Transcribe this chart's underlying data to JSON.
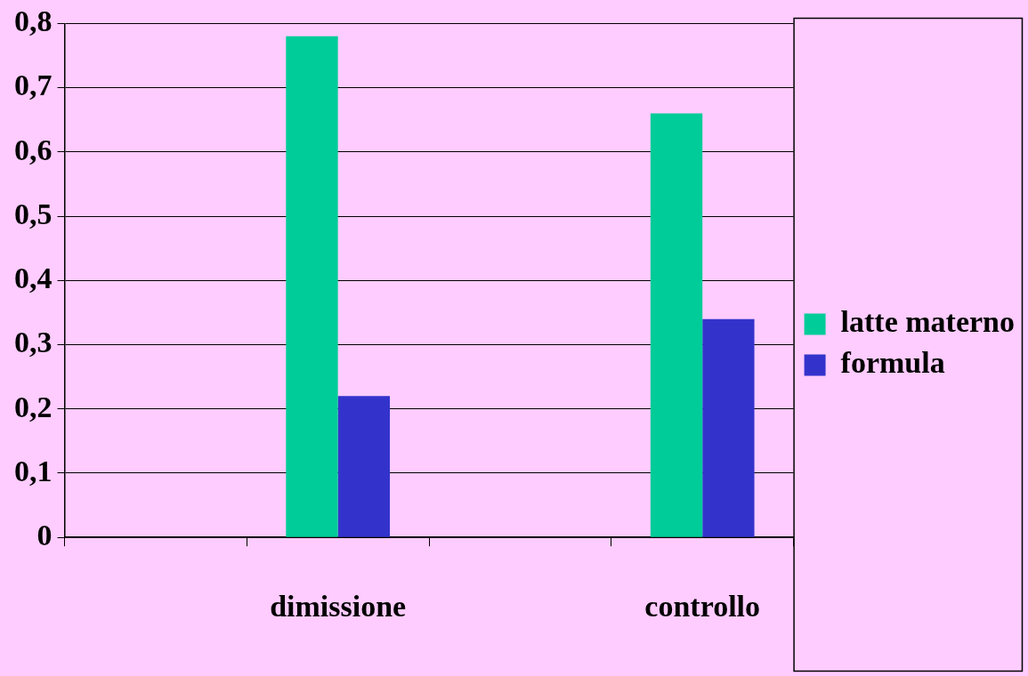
{
  "chart_data": {
    "type": "bar",
    "categories": [
      null,
      "dimissione",
      null,
      "controllo"
    ],
    "series": [
      {
        "name": "latte materno",
        "color": "#00cc99",
        "values": [
          null,
          0.78,
          null,
          0.66
        ]
      },
      {
        "name": "formula",
        "color": "#3333cc",
        "values": [
          null,
          0.22,
          null,
          0.34
        ]
      }
    ],
    "ylim": [
      0,
      0.8
    ],
    "yticks": [
      {
        "value": 0,
        "label": "0"
      },
      {
        "value": 0.1,
        "label": "0,1"
      },
      {
        "value": 0.2,
        "label": "0,2"
      },
      {
        "value": 0.3,
        "label": "0,3"
      },
      {
        "value": 0.4,
        "label": "0,4"
      },
      {
        "value": 0.5,
        "label": "0,5"
      },
      {
        "value": 0.6,
        "label": "0,6"
      },
      {
        "value": 0.7,
        "label": "0,7"
      },
      {
        "value": 0.8,
        "label": "0,8"
      }
    ],
    "grid": "y",
    "legend": "right"
  }
}
